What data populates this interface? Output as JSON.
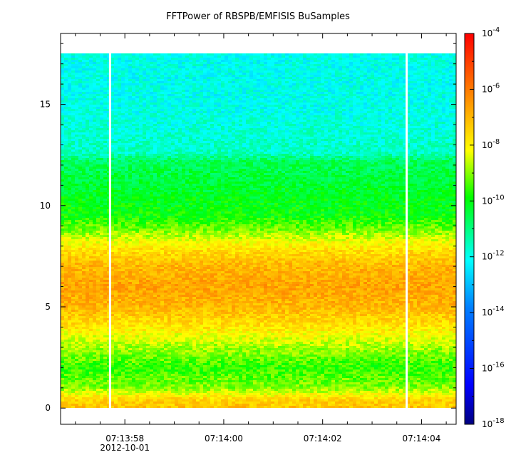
{
  "chart_data": {
    "type": "heatmap",
    "title": "FFTPower of RBSPB/EMFISIS  BuSamples",
    "xlabel": "",
    "ylabel": "",
    "x_tick_labels": [
      "07:13:58",
      "07:14:00",
      "07:14:02",
      "07:14:04"
    ],
    "x_date_label": "2012-10-01",
    "x_range_seconds": [
      56.7,
      64.7
    ],
    "y_range": [
      -0.8,
      18.5
    ],
    "y_ticks": [
      0,
      5,
      10,
      15
    ],
    "y_data_extent": [
      0.0,
      17.5
    ],
    "data_gaps_seconds": [
      57.7,
      63.7
    ],
    "colorbar": {
      "scale": "log",
      "range_exponent": [
        -18,
        -4
      ],
      "tick_exponents": [
        -4,
        -6,
        -8,
        -10,
        -12,
        -14,
        -16,
        -18
      ],
      "tick_labels": [
        "10-4",
        "10-6",
        "10-8",
        "10-10",
        "10-12",
        "10-14",
        "10-16",
        "10-18"
      ],
      "colormap": [
        "#000080",
        "#0000ff",
        "#00ffff",
        "#00ff00",
        "#ffff00",
        "#ff8000",
        "#ff0000"
      ]
    },
    "frequency_profile_log10_power": [
      {
        "y": 0.0,
        "v": -7.2
      },
      {
        "y": 0.4,
        "v": -7.5
      },
      {
        "y": 1.0,
        "v": -9.0
      },
      {
        "y": 2.0,
        "v": -9.6
      },
      {
        "y": 3.0,
        "v": -8.8
      },
      {
        "y": 4.0,
        "v": -7.8
      },
      {
        "y": 5.0,
        "v": -7.0
      },
      {
        "y": 6.0,
        "v": -6.7
      },
      {
        "y": 7.0,
        "v": -7.0
      },
      {
        "y": 8.0,
        "v": -7.9
      },
      {
        "y": 8.8,
        "v": -9.1
      },
      {
        "y": 9.5,
        "v": -9.9
      },
      {
        "y": 11.0,
        "v": -10.3
      },
      {
        "y": 12.2,
        "v": -10.7
      },
      {
        "y": 12.6,
        "v": -11.6
      },
      {
        "y": 15.0,
        "v": -12.0
      },
      {
        "y": 17.5,
        "v": -12.0
      }
    ],
    "grid": false
  }
}
